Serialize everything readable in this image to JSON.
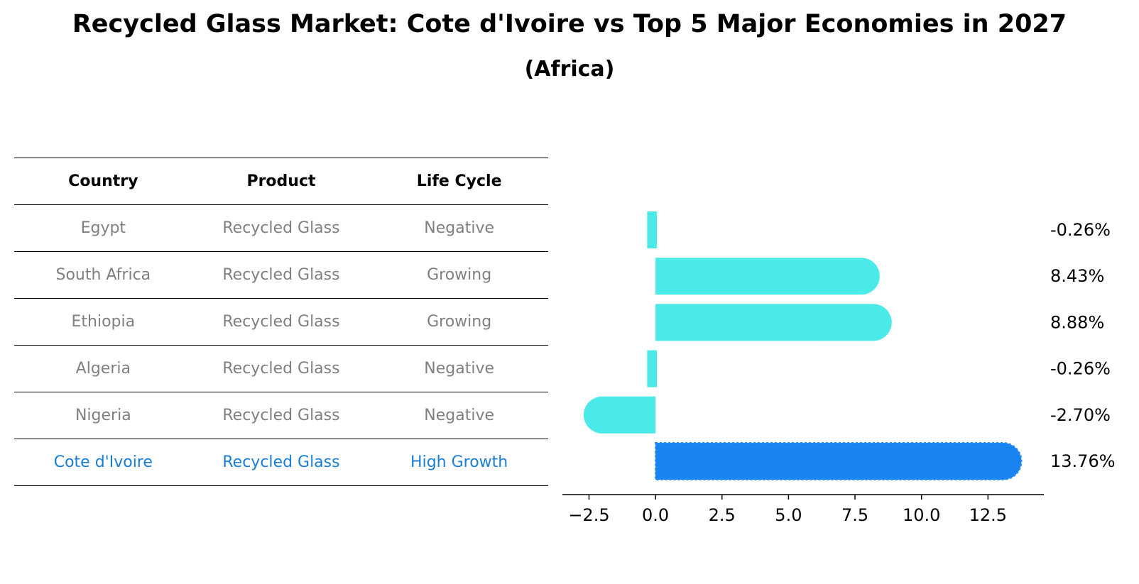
{
  "title": "Recycled Glass Market: Cote d'Ivoire vs Top 5 Major Economies in 2027",
  "subtitle": "(Africa)",
  "table": {
    "headers": [
      "Country",
      "Product",
      "Life Cycle"
    ],
    "rows": [
      {
        "country": "Egypt",
        "product": "Recycled Glass",
        "life_cycle": "Negative"
      },
      {
        "country": "South Africa",
        "product": "Recycled Glass",
        "life_cycle": "Growing"
      },
      {
        "country": "Ethiopia",
        "product": "Recycled Glass",
        "life_cycle": "Growing"
      },
      {
        "country": "Algeria",
        "product": "Recycled Glass",
        "life_cycle": "Negative"
      },
      {
        "country": "Nigeria",
        "product": "Recycled Glass",
        "life_cycle": "Negative"
      },
      {
        "country": "Cote d'Ivoire",
        "product": "Recycled Glass",
        "life_cycle": "High Growth",
        "highlight": true
      }
    ]
  },
  "chart_data": {
    "type": "bar",
    "orientation": "horizontal",
    "categories": [
      "Egypt",
      "South Africa",
      "Ethiopia",
      "Algeria",
      "Nigeria",
      "Cote d'Ivoire"
    ],
    "values": [
      -0.26,
      8.43,
      8.88,
      -0.26,
      -2.7,
      13.76
    ],
    "value_labels": [
      "-0.26%",
      "8.43%",
      "8.88%",
      "-0.26%",
      "-2.70%",
      "13.76%"
    ],
    "xlim": [
      -3.5,
      14.6
    ],
    "xticks": [
      -2.5,
      0.0,
      2.5,
      5.0,
      7.5,
      10.0,
      12.5
    ],
    "xtick_labels": [
      "−2.5",
      "0.0",
      "2.5",
      "5.0",
      "7.5",
      "10.0",
      "12.5"
    ],
    "colors": {
      "default": "#4beae8",
      "highlight": "#1984f2"
    },
    "highlight_index": 5
  }
}
